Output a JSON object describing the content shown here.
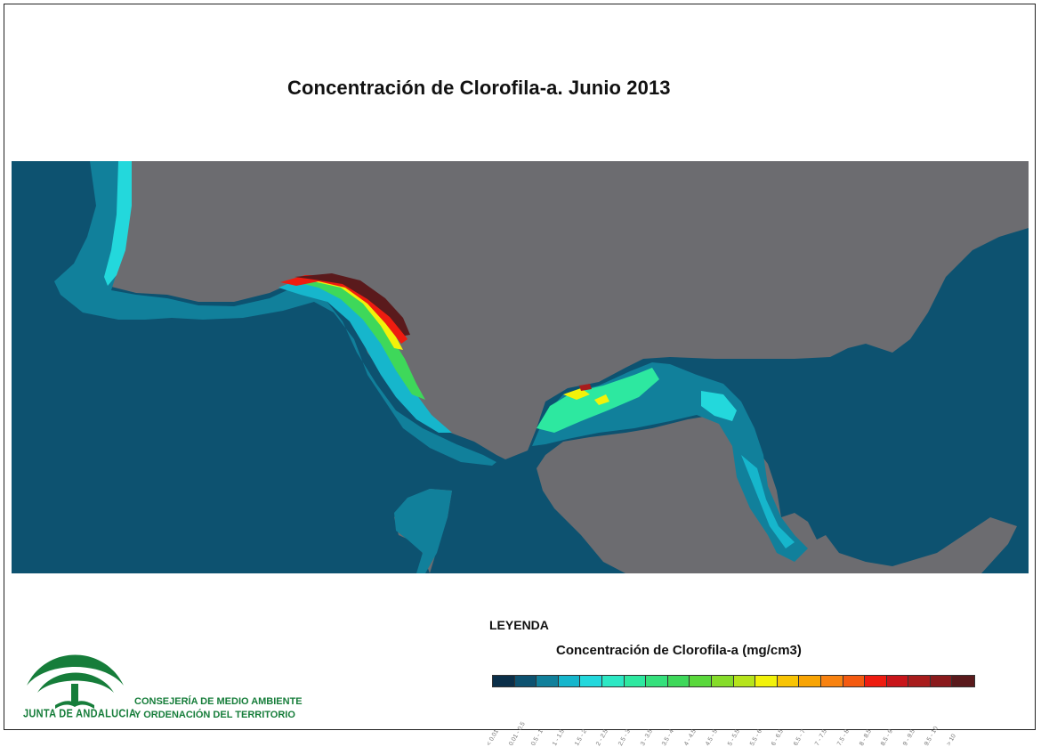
{
  "title": "Concentración de Clorofila-a. Junio 2013",
  "legend": {
    "heading": "LEYENDA",
    "subtitle": "Concentración de Clorofila-a (mg/cm3)",
    "classes": [
      {
        "label": "< 0.01",
        "color": "#0b2f49"
      },
      {
        "label": "0.01 - 0.5",
        "color": "#0d5270"
      },
      {
        "label": "0.5 - 1",
        "color": "#11809b"
      },
      {
        "label": "1 - 1.5",
        "color": "#16b6cc"
      },
      {
        "label": "1.5 - 2",
        "color": "#23d8dc"
      },
      {
        "label": "2 - 2.5",
        "color": "#2de8c4"
      },
      {
        "label": "2.5 - 3",
        "color": "#2ee8a0"
      },
      {
        "label": "3 - 3.5",
        "color": "#35e07c"
      },
      {
        "label": "3.5 - 4",
        "color": "#3ed85a"
      },
      {
        "label": "4 - 4.5",
        "color": "#5ad83c"
      },
      {
        "label": "4.5 - 5",
        "color": "#86dc2a"
      },
      {
        "label": "5 - 5.5",
        "color": "#b6e41c"
      },
      {
        "label": "5.5 - 6",
        "color": "#f2f20a"
      },
      {
        "label": "6 - 6.5",
        "color": "#f8c404"
      },
      {
        "label": "6.5 - 7",
        "color": "#f8a404"
      },
      {
        "label": "7 - 7.5",
        "color": "#f88210"
      },
      {
        "label": "7.5 - 8",
        "color": "#f45a10"
      },
      {
        "label": "8 - 8.5",
        "color": "#ee1c10"
      },
      {
        "label": "8.5 - 9",
        "color": "#c8151a"
      },
      {
        "label": "9 - 9.5",
        "color": "#a81c1c"
      },
      {
        "label": "9.5 - 10",
        "color": "#8a1a1c"
      },
      {
        "label": "> 10",
        "color": "#5a1a1c"
      }
    ]
  },
  "logo": {
    "name": "JUNTA DE ANDALUCIA",
    "department_line1": "CONSEJERÍA DE MEDIO AMBIENTE",
    "department_line2": "Y ORDENACIÓN DEL TERRITORIO",
    "brand_color": "#167d3a"
  },
  "map_colors": {
    "land": "#6c6c70",
    "open_sea": "#0d5270"
  }
}
